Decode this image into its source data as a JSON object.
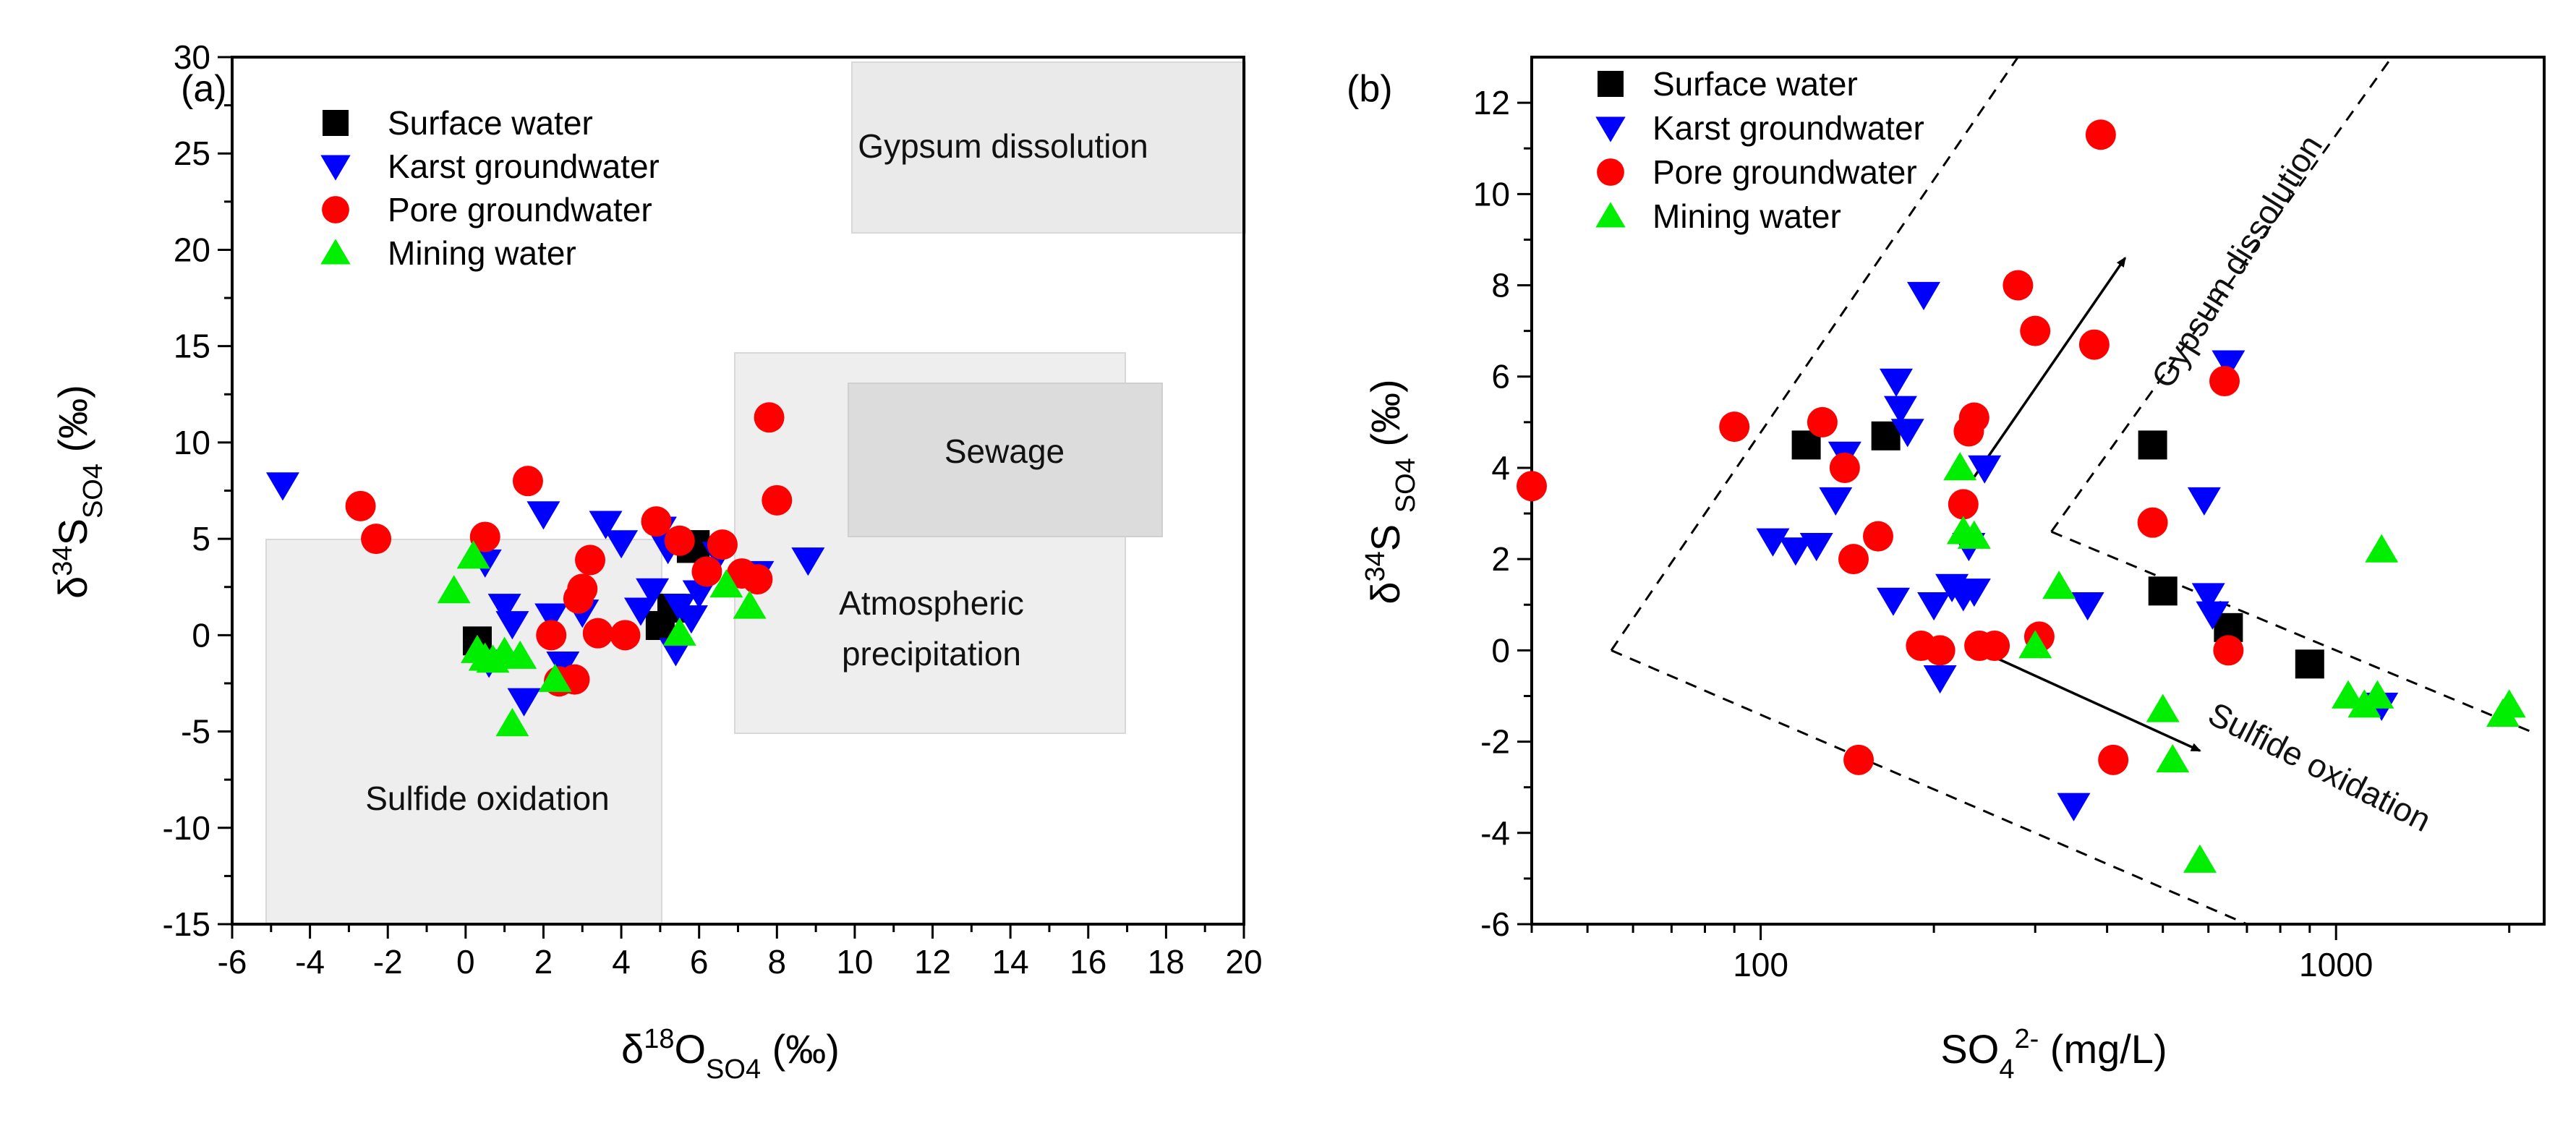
{
  "figure": {
    "panel_a_label": "(a)",
    "panel_b_label": "(b)"
  },
  "chart_data": [
    {
      "type": "scatter",
      "panel": "(a)",
      "xlabel": "δ18OSO4 (‰)",
      "ylabel": "δ34SSO4 (‰)",
      "xlim": [
        -6,
        20
      ],
      "ylim": [
        -15,
        30
      ],
      "xticks": [
        -6,
        -4,
        -2,
        0,
        2,
        4,
        6,
        8,
        10,
        12,
        14,
        16,
        18,
        20
      ],
      "yticks": [
        -15,
        -10,
        -5,
        0,
        5,
        10,
        15,
        20,
        25,
        30
      ],
      "legend": [
        "Surface water",
        "Karst groundwater",
        "Pore groundwater",
        "Mining water"
      ],
      "legend_position": "top-left",
      "regions": [
        {
          "label": "Gypsum dissolution",
          "x": [
            10,
            20
          ],
          "y": [
            21,
            30
          ]
        },
        {
          "label": "Sewage",
          "x": [
            10,
            18
          ],
          "y": [
            5,
            13
          ]
        },
        {
          "label": "Atmospheric precipitation",
          "x": [
            7,
            17
          ],
          "y": [
            -5,
            15
          ]
        },
        {
          "label": "Sulfide oxidation",
          "x": [
            -5,
            5
          ],
          "y": [
            -15,
            5
          ]
        }
      ],
      "series": [
        {
          "name": "Surface water",
          "marker": "square",
          "color": "#000000",
          "points": [
            [
              0.3,
              -0.3
            ],
            [
              5.8,
              4.5
            ],
            [
              5.9,
              4.7
            ],
            [
              5.0,
              0.5
            ],
            [
              5.3,
              1.4
            ]
          ]
        },
        {
          "name": "Karst groundwater",
          "marker": "triangle-down",
          "color": "#0000ff",
          "points": [
            [
              -4.7,
              7.8
            ],
            [
              0.5,
              3.8
            ],
            [
              1.0,
              1.5
            ],
            [
              1.2,
              0.6
            ],
            [
              1.5,
              -3.4
            ],
            [
              2.0,
              6.3
            ],
            [
              2.2,
              1.0
            ],
            [
              2.5,
              -1.5
            ],
            [
              3.0,
              1.2
            ],
            [
              3.6,
              5.8
            ],
            [
              4.0,
              4.8
            ],
            [
              4.5,
              1.3
            ],
            [
              4.8,
              2.3
            ],
            [
              5.0,
              5.5
            ],
            [
              5.2,
              4.5
            ],
            [
              5.4,
              -0.8
            ],
            [
              5.5,
              1.5
            ],
            [
              6.0,
              2.2
            ],
            [
              6.5,
              4.2
            ],
            [
              7.5,
              3.2
            ],
            [
              8.8,
              3.9
            ],
            [
              0.6,
              -1.4
            ],
            [
              5.8,
              0.9
            ]
          ]
        },
        {
          "name": "Pore groundwater",
          "marker": "circle",
          "color": "#ff0000",
          "points": [
            [
              -2.7,
              6.7
            ],
            [
              -2.3,
              5.0
            ],
            [
              0.5,
              5.1
            ],
            [
              1.6,
              8.0
            ],
            [
              2.2,
              0.0
            ],
            [
              2.4,
              -2.4
            ],
            [
              2.8,
              -2.3
            ],
            [
              2.9,
              1.9
            ],
            [
              3.0,
              2.4
            ],
            [
              3.2,
              3.9
            ],
            [
              3.4,
              0.1
            ],
            [
              4.1,
              0.0
            ],
            [
              4.9,
              5.9
            ],
            [
              5.5,
              4.9
            ],
            [
              6.2,
              3.3
            ],
            [
              6.6,
              4.7
            ],
            [
              7.1,
              3.2
            ],
            [
              7.5,
              2.9
            ],
            [
              7.8,
              11.3
            ],
            [
              8.0,
              7.0
            ]
          ]
        },
        {
          "name": "Mining water",
          "marker": "triangle-up",
          "color": "#00ee00",
          "points": [
            [
              -0.3,
              2.3
            ],
            [
              0.2,
              4.1
            ],
            [
              0.5,
              -1.2
            ],
            [
              0.7,
              -1.3
            ],
            [
              1.0,
              -0.9
            ],
            [
              1.2,
              -4.6
            ],
            [
              1.4,
              -1.1
            ],
            [
              2.3,
              -2.3
            ],
            [
              5.5,
              0.1
            ],
            [
              6.7,
              2.6
            ],
            [
              7.3,
              1.5
            ],
            [
              0.3,
              -0.8
            ]
          ]
        }
      ]
    },
    {
      "type": "scatter",
      "panel": "(b)",
      "xscale": "log",
      "xlabel": "SO42- (mg/L)",
      "ylabel": "δ34S SO4 (‰)",
      "xlim": [
        40,
        2300
      ],
      "ylim": [
        -6,
        13
      ],
      "xtick_labels": [
        "100",
        "1000"
      ],
      "yticks": [
        -6,
        -4,
        -2,
        0,
        2,
        4,
        6,
        8,
        10,
        12
      ],
      "legend": [
        "Surface water",
        "Karst groundwater",
        "Pore groundwater",
        "Mining water"
      ],
      "legend_position": "top-left",
      "annotations": [
        "Gypsum dissolution",
        "Sulfide oxidation"
      ],
      "guides": {
        "gypsum_lines": [
          [
            [
              55,
              0
            ],
            [
              280,
              13
            ]
          ],
          [
            [
              320,
              2.6
            ],
            [
              1250,
              13
            ]
          ]
        ],
        "sulfide_lines": [
          [
            [
              55,
              0
            ],
            [
              700,
              -6
            ]
          ],
          [
            [
              320,
              2.6
            ],
            [
              2200,
              -1.8
            ]
          ]
        ],
        "arrows": [
          [
            [
              235,
              3.8
            ],
            [
              430,
              8.6
            ]
          ],
          [
            [
              240,
              0.0
            ],
            [
              580,
              -2.2
            ]
          ]
        ]
      },
      "series": [
        {
          "name": "Surface water",
          "marker": "square",
          "color": "#000000",
          "points": [
            [
              120,
              4.5
            ],
            [
              165,
              4.7
            ],
            [
              480,
              4.5
            ],
            [
              500,
              1.3
            ],
            [
              650,
              0.5
            ],
            [
              900,
              -0.3
            ]
          ]
        },
        {
          "name": "Karst groundwater",
          "marker": "triangle-down",
          "color": "#0000ff",
          "points": [
            [
              105,
              2.4
            ],
            [
              115,
              2.2
            ],
            [
              125,
              2.3
            ],
            [
              135,
              3.3
            ],
            [
              140,
              4.3
            ],
            [
              170,
              1.1
            ],
            [
              172,
              5.9
            ],
            [
              175,
              5.3
            ],
            [
              180,
              4.8
            ],
            [
              192,
              7.8
            ],
            [
              200,
              1.0
            ],
            [
              205,
              -0.6
            ],
            [
              215,
              1.4
            ],
            [
              225,
              1.2
            ],
            [
              230,
              2.3
            ],
            [
              235,
              1.3
            ],
            [
              245,
              4.0
            ],
            [
              350,
              -3.4
            ],
            [
              370,
              1.0
            ],
            [
              590,
              3.3
            ],
            [
              600,
              1.2
            ],
            [
              610,
              0.8
            ],
            [
              650,
              6.3
            ],
            [
              1200,
              -1.2
            ]
          ]
        },
        {
          "name": "Pore groundwater",
          "marker": "circle",
          "color": "#ff0000",
          "points": [
            [
              40,
              3.6
            ],
            [
              90,
              4.9
            ],
            [
              128,
              5.0
            ],
            [
              140,
              4.0
            ],
            [
              145,
              2.0
            ],
            [
              148,
              -2.4
            ],
            [
              160,
              2.5
            ],
            [
              190,
              0.1
            ],
            [
              205,
              0.0
            ],
            [
              225,
              3.2
            ],
            [
              230,
              4.8
            ],
            [
              235,
              5.1
            ],
            [
              240,
              0.1
            ],
            [
              255,
              0.1
            ],
            [
              280,
              8.0
            ],
            [
              300,
              7.0
            ],
            [
              305,
              0.3
            ],
            [
              380,
              6.7
            ],
            [
              390,
              11.3
            ],
            [
              410,
              -2.4
            ],
            [
              480,
              2.8
            ],
            [
              640,
              5.9
            ],
            [
              650,
              0.0
            ]
          ]
        },
        {
          "name": "Mining water",
          "marker": "triangle-up",
          "color": "#00ee00",
          "points": [
            [
              222,
              4.0
            ],
            [
              225,
              2.6
            ],
            [
              235,
              2.5
            ],
            [
              300,
              0.1
            ],
            [
              330,
              1.4
            ],
            [
              500,
              -1.3
            ],
            [
              520,
              -2.4
            ],
            [
              580,
              -4.6
            ],
            [
              1050,
              -1.0
            ],
            [
              1120,
              -1.2
            ],
            [
              1180,
              -1.0
            ],
            [
              1200,
              2.2
            ],
            [
              1950,
              -1.4
            ],
            [
              2000,
              -1.2
            ]
          ]
        }
      ]
    }
  ]
}
